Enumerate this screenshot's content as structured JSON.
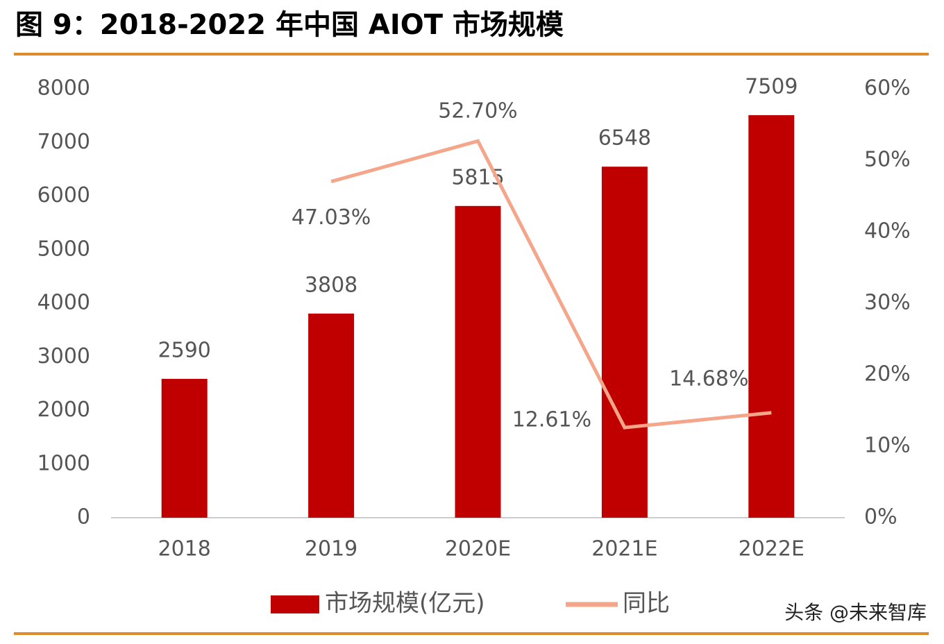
{
  "chart_data": {
    "type": "bar",
    "title": "图 9：2018-2022 年中国 AIOT 市场规模",
    "categories": [
      "2018",
      "2019",
      "2020E",
      "2021E",
      "2022E"
    ],
    "series": [
      {
        "name": "市场规模(亿元)",
        "type": "bar",
        "color": "#c00000",
        "values": [
          2590,
          3808,
          5815,
          6548,
          7509
        ]
      },
      {
        "name": "同比",
        "type": "line",
        "axis": "y2",
        "color": "#f4a58a",
        "values": [
          null,
          47.03,
          52.7,
          12.61,
          14.68
        ],
        "value_labels": [
          null,
          "47.03%",
          "52.70%",
          "12.61%",
          "14.68%"
        ]
      }
    ],
    "ylim": [
      0,
      8000
    ],
    "yticks": [
      0,
      1000,
      2000,
      3000,
      4000,
      5000,
      6000,
      7000,
      8000
    ],
    "y2lim": [
      0,
      60
    ],
    "y2ticks": [
      {
        "value": 0,
        "label": "0%"
      },
      {
        "value": 10,
        "label": "10%"
      },
      {
        "value": 20,
        "label": "20%"
      },
      {
        "value": 30,
        "label": "30%"
      },
      {
        "value": 40,
        "label": "40%"
      },
      {
        "value": 50,
        "label": "50%"
      },
      {
        "value": 60,
        "label": "60%"
      }
    ],
    "grid": false,
    "legend": "bottom",
    "watermark": "头条 @未来智库"
  }
}
